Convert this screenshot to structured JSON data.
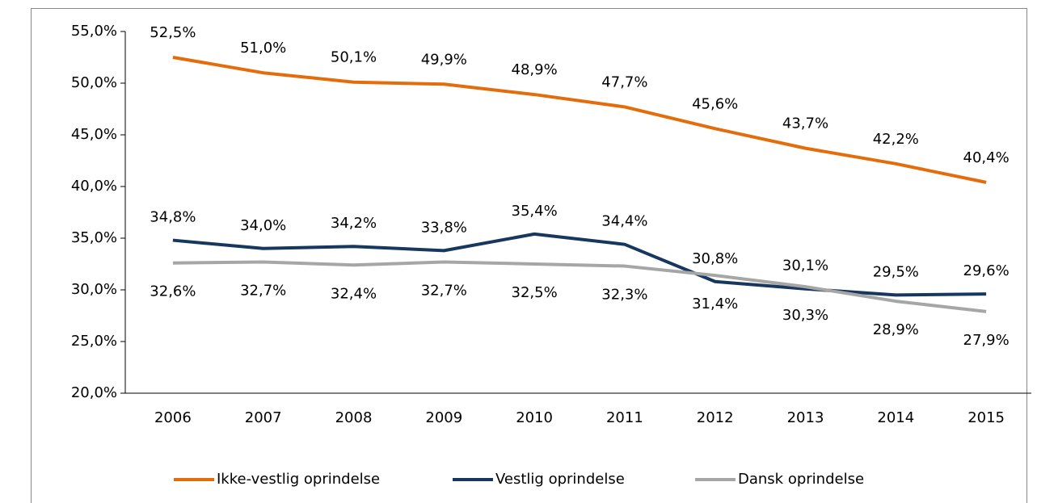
{
  "chart_data": {
    "type": "line",
    "categories": [
      "2006",
      "2007",
      "2008",
      "2009",
      "2010",
      "2011",
      "2012",
      "2013",
      "2014",
      "2015"
    ],
    "series": [
      {
        "name": "Ikke-vestlig oprindelse",
        "color": "#e46c0a",
        "values": [
          52.5,
          51.0,
          50.1,
          49.9,
          48.9,
          47.7,
          45.6,
          43.7,
          42.2,
          40.4
        ],
        "value_labels": [
          "52,5%",
          "51,0%",
          "50,1%",
          "49,9%",
          "48,9%",
          "47,7%",
          "45,6%",
          "43,7%",
          "42,2%",
          "40,4%"
        ]
      },
      {
        "name": "Vestlig oprindelse",
        "color": "#17375e",
        "values": [
          34.8,
          34.0,
          34.2,
          33.8,
          35.4,
          34.4,
          30.8,
          30.1,
          29.5,
          29.6
        ],
        "value_labels": [
          "34,8%",
          "34,0%",
          "34,2%",
          "33,8%",
          "35,4%",
          "34,4%",
          "30,8%",
          "30,1%",
          "29,5%",
          "29,6%"
        ]
      },
      {
        "name": "Dansk oprindelse",
        "color": "#a6a6a6",
        "values": [
          32.6,
          32.7,
          32.4,
          32.7,
          32.5,
          32.3,
          31.4,
          30.3,
          28.9,
          27.9
        ],
        "value_labels": [
          "32,6%",
          "32,7%",
          "32,4%",
          "32,7%",
          "32,5%",
          "32,3%",
          "31,4%",
          "30,3%",
          "28,9%",
          "27,9%"
        ]
      }
    ],
    "ylim": [
      20,
      55
    ],
    "yticks": [
      {
        "value": 20,
        "label": "20,0%"
      },
      {
        "value": 25,
        "label": "25,0%"
      },
      {
        "value": 30,
        "label": "30,0%"
      },
      {
        "value": 35,
        "label": "35,0%"
      },
      {
        "value": 40,
        "label": "40,0%"
      },
      {
        "value": 45,
        "label": "45,0%"
      },
      {
        "value": 50,
        "label": "50,0%"
      },
      {
        "value": 55,
        "label": "55,0%"
      }
    ],
    "legend": "bottom"
  }
}
